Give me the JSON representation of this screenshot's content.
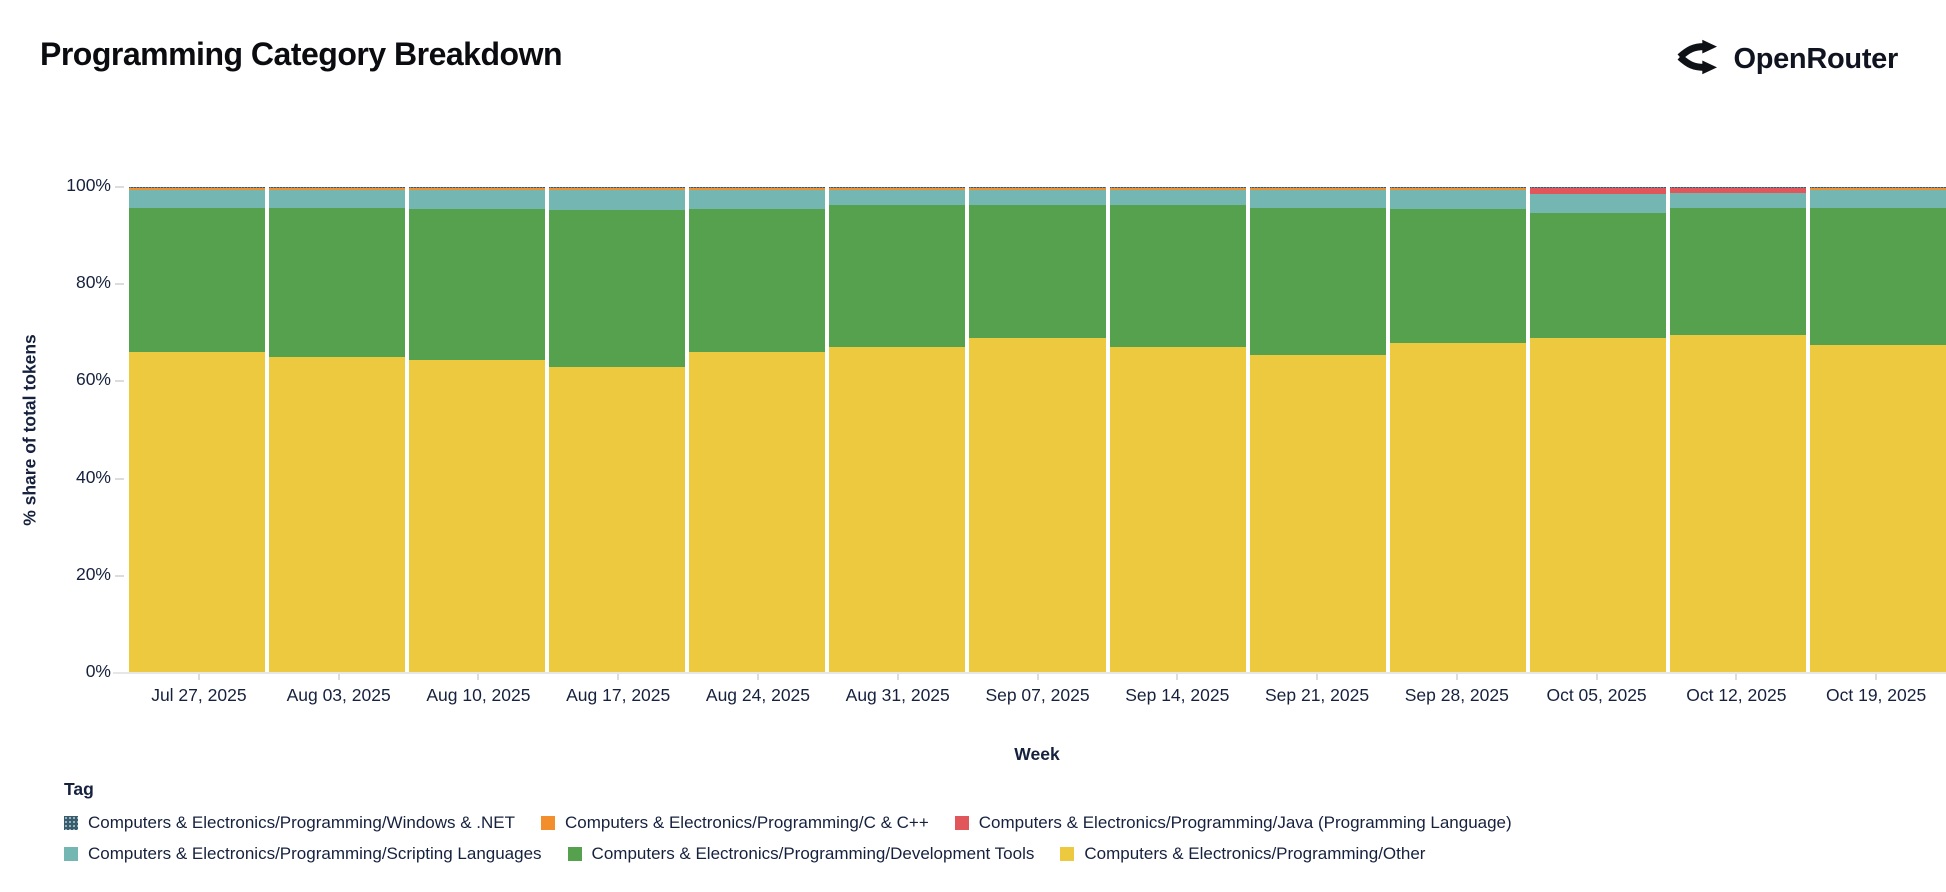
{
  "page": {
    "title": "Programming Category Breakdown"
  },
  "brand": {
    "name": "OpenRouter",
    "icon": "openrouter-fork-icon"
  },
  "chart_data": {
    "type": "bar",
    "variant": "stacked-100-percent",
    "title": "Programming Category Breakdown",
    "xlabel": "Week",
    "ylabel": "% share of total tokens",
    "ylim": [
      0,
      100
    ],
    "yticks": [
      0,
      20,
      40,
      60,
      80,
      100
    ],
    "ytick_suffix": "%",
    "grid": false,
    "legend_position": "bottom",
    "categories": [
      "Jul 27, 2025",
      "Aug 03, 2025",
      "Aug 10, 2025",
      "Aug 17, 2025",
      "Aug 24, 2025",
      "Aug 31, 2025",
      "Sep 07, 2025",
      "Sep 14, 2025",
      "Sep 21, 2025",
      "Sep 28, 2025",
      "Oct 05, 2025",
      "Oct 12, 2025",
      "Oct 19, 2025"
    ],
    "stack_order_note": "first series is bottom of stack",
    "series": [
      {
        "name": "Computers & Electronics/Programming/Other",
        "color": "#ecc93f",
        "values": [
          66.0,
          65.0,
          64.5,
          63.0,
          66.0,
          67.0,
          69.0,
          67.0,
          65.5,
          68.0,
          69.0,
          69.5,
          67.5
        ]
      },
      {
        "name": "Computers & Electronics/Programming/Development Tools",
        "color": "#55a14e",
        "values": [
          29.7,
          30.7,
          30.9,
          32.2,
          29.4,
          29.3,
          27.2,
          29.4,
          30.2,
          27.4,
          25.6,
          26.2,
          28.1
        ]
      },
      {
        "name": "Computers & Electronics/Programming/Scripting Languages",
        "color": "#74b6b1",
        "values": [
          3.7,
          3.7,
          4.0,
          4.2,
          4.0,
          3.1,
          3.2,
          3.0,
          3.7,
          4.0,
          4.0,
          3.0,
          3.8
        ]
      },
      {
        "name": "Computers & Electronics/Programming/Java (Programming Language)",
        "color": "#e0565a",
        "values": [
          0,
          0,
          0,
          0,
          0,
          0,
          0,
          0,
          0,
          0,
          1.2,
          1.1,
          0
        ]
      },
      {
        "name": "Computers & Electronics/Programming/C & C++",
        "color": "#f28e2b",
        "values": [
          0.45,
          0.45,
          0.45,
          0.45,
          0.45,
          0.45,
          0.45,
          0.45,
          0.45,
          0.45,
          0.05,
          0.05,
          0.45
        ]
      },
      {
        "name": "Computers & Electronics/Programming/Windows & .NET",
        "color": "#44566b",
        "patterned": true,
        "values": [
          0.15,
          0.15,
          0.15,
          0.15,
          0.15,
          0.15,
          0.15,
          0.15,
          0.15,
          0.15,
          0.15,
          0.15,
          0.15
        ]
      }
    ]
  },
  "legend": {
    "title": "Tag",
    "rows": [
      [
        {
          "label": "Computers & Electronics/Programming/Windows & .NET",
          "color": "#44566b",
          "patterned": true
        },
        {
          "label": "Computers & Electronics/Programming/C & C++",
          "color": "#f28e2b",
          "patterned": false
        },
        {
          "label": "Computers & Electronics/Programming/Java (Programming Language)",
          "color": "#e0565a",
          "patterned": false
        }
      ],
      [
        {
          "label": "Computers & Electronics/Programming/Scripting Languages",
          "color": "#74b6b1",
          "patterned": false
        },
        {
          "label": "Computers & Electronics/Programming/Development Tools",
          "color": "#55a14e",
          "patterned": false
        },
        {
          "label": "Computers & Electronics/Programming/Other",
          "color": "#ecc93f",
          "patterned": false
        }
      ]
    ]
  }
}
